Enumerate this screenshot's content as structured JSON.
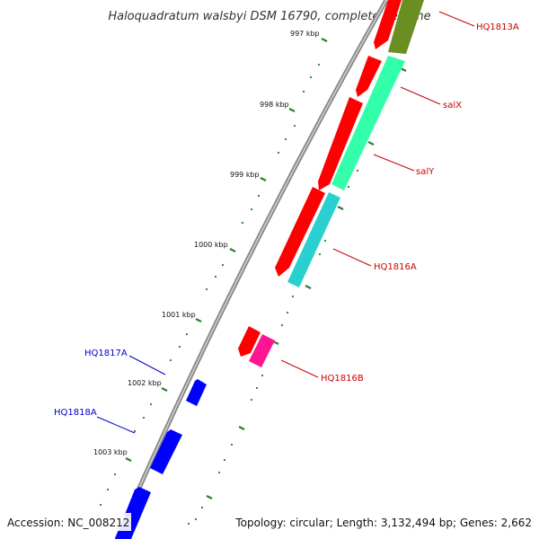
{
  "title": "Haloquadratum walsbyi DSM 16790, complete genome",
  "footer": {
    "accession": "Accession: NC_008212",
    "summary": "Topology: circular; Length: 3,132,494 bp; Genes: 2,662"
  },
  "ticks": [
    "997 kbp",
    "998 kbp",
    "999 kbp",
    "1000 kbp",
    "1001 kbp",
    "1002 kbp",
    "1003 kbp"
  ],
  "gene_labels": [
    {
      "name": "HQ1813A",
      "color": "#cc0000"
    },
    {
      "name": "salX",
      "color": "#cc0000"
    },
    {
      "name": "salY",
      "color": "#cc0000"
    },
    {
      "name": "HQ1816A",
      "color": "#cc0000"
    },
    {
      "name": "HQ1816B",
      "color": "#cc0000"
    },
    {
      "name": "HQ1817A",
      "color": "#0000cc"
    },
    {
      "name": "HQ1818A",
      "color": "#0000cc"
    }
  ],
  "colors": {
    "backbone": "#8a8a8a",
    "tick": "#2e7d2e",
    "forward_cds": "#ff0000",
    "reverse_cds": "#0000ff",
    "feature_olive": "#6b8e23",
    "feature_green": "#33ffaa",
    "feature_cyan": "#2ad0d0",
    "feature_magenta": "#ff1493"
  }
}
